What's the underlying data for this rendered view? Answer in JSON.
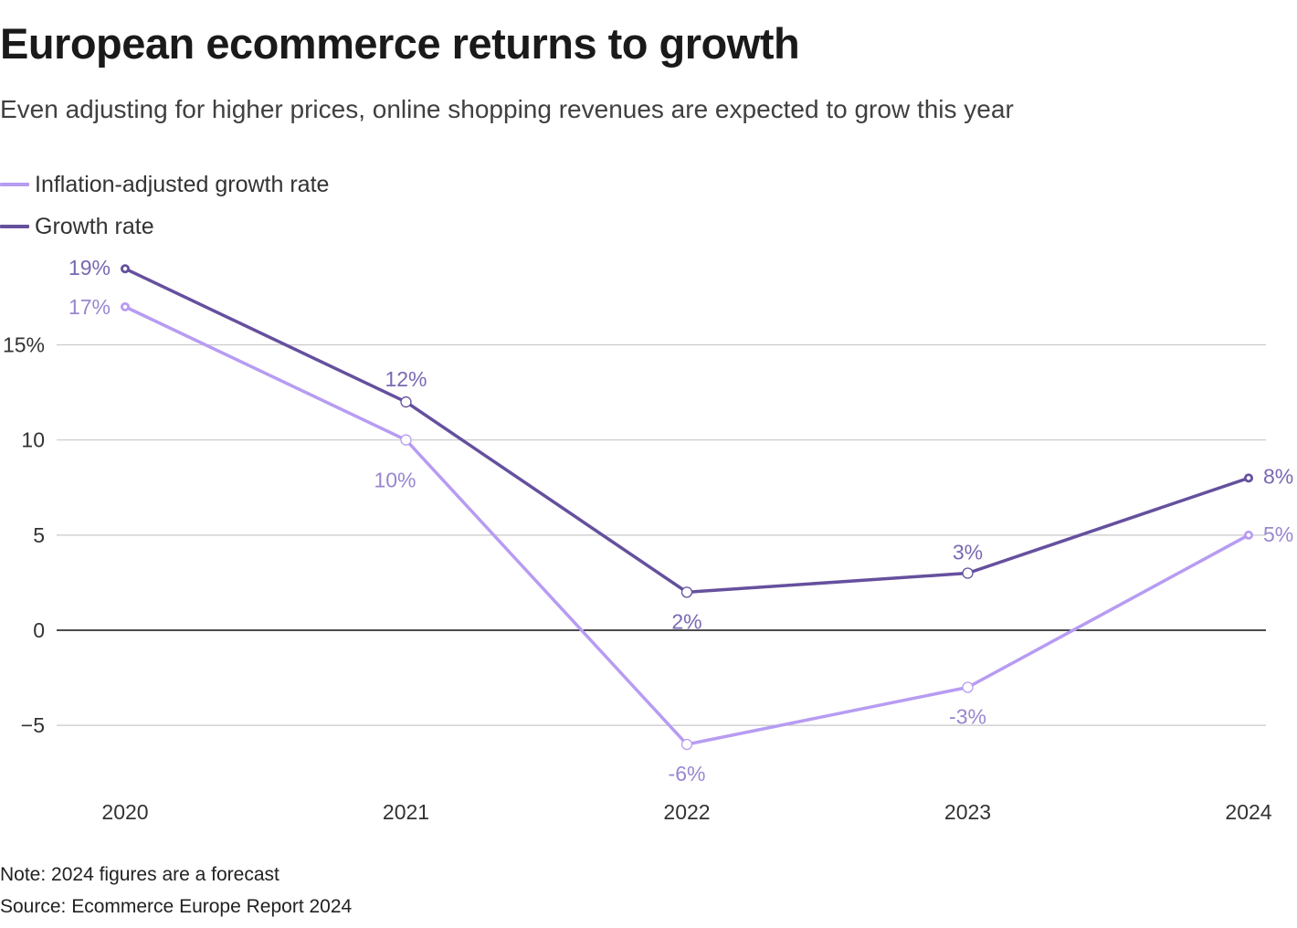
{
  "header": {
    "title": "European ecommerce returns to growth",
    "subtitle": "Even adjusting for higher prices, online shopping revenues are expected to grow this year"
  },
  "colors": {
    "inflation_adjusted": "#b79cf2",
    "growth": "#65509e",
    "label_light": "#9a86cf",
    "label_dark": "#7a68b2",
    "grid": "#c8c8c8",
    "zero_line": "#111111"
  },
  "chart_data": {
    "type": "line",
    "title": "European ecommerce returns to growth",
    "xlabel": "",
    "ylabel": "",
    "x": [
      "2020",
      "2021",
      "2022",
      "2023",
      "2024"
    ],
    "ylim": [
      -9,
      20
    ],
    "y_ticks": [
      {
        "value": 15,
        "label": "15%"
      },
      {
        "value": 10,
        "label": "10"
      },
      {
        "value": 5,
        "label": "5"
      },
      {
        "value": 0,
        "label": "0"
      },
      {
        "value": -5,
        "label": "−5"
      }
    ],
    "grid": true,
    "legend_position": "top-left",
    "series": [
      {
        "key": "inflation_adjusted",
        "name": "Inflation-adjusted growth rate",
        "values": [
          17,
          10,
          -6,
          -3,
          5
        ],
        "labels": [
          "17%",
          "10%",
          "-6%",
          "-3%",
          "5%"
        ]
      },
      {
        "key": "growth",
        "name": "Growth rate",
        "values": [
          19,
          12,
          2,
          3,
          8
        ],
        "labels": [
          "19%",
          "12%",
          "2%",
          "3%",
          "8%"
        ]
      }
    ]
  },
  "footer": {
    "note": "Note: 2024 figures are a forecast",
    "source": "Source: Ecommerce Europe Report 2024"
  }
}
